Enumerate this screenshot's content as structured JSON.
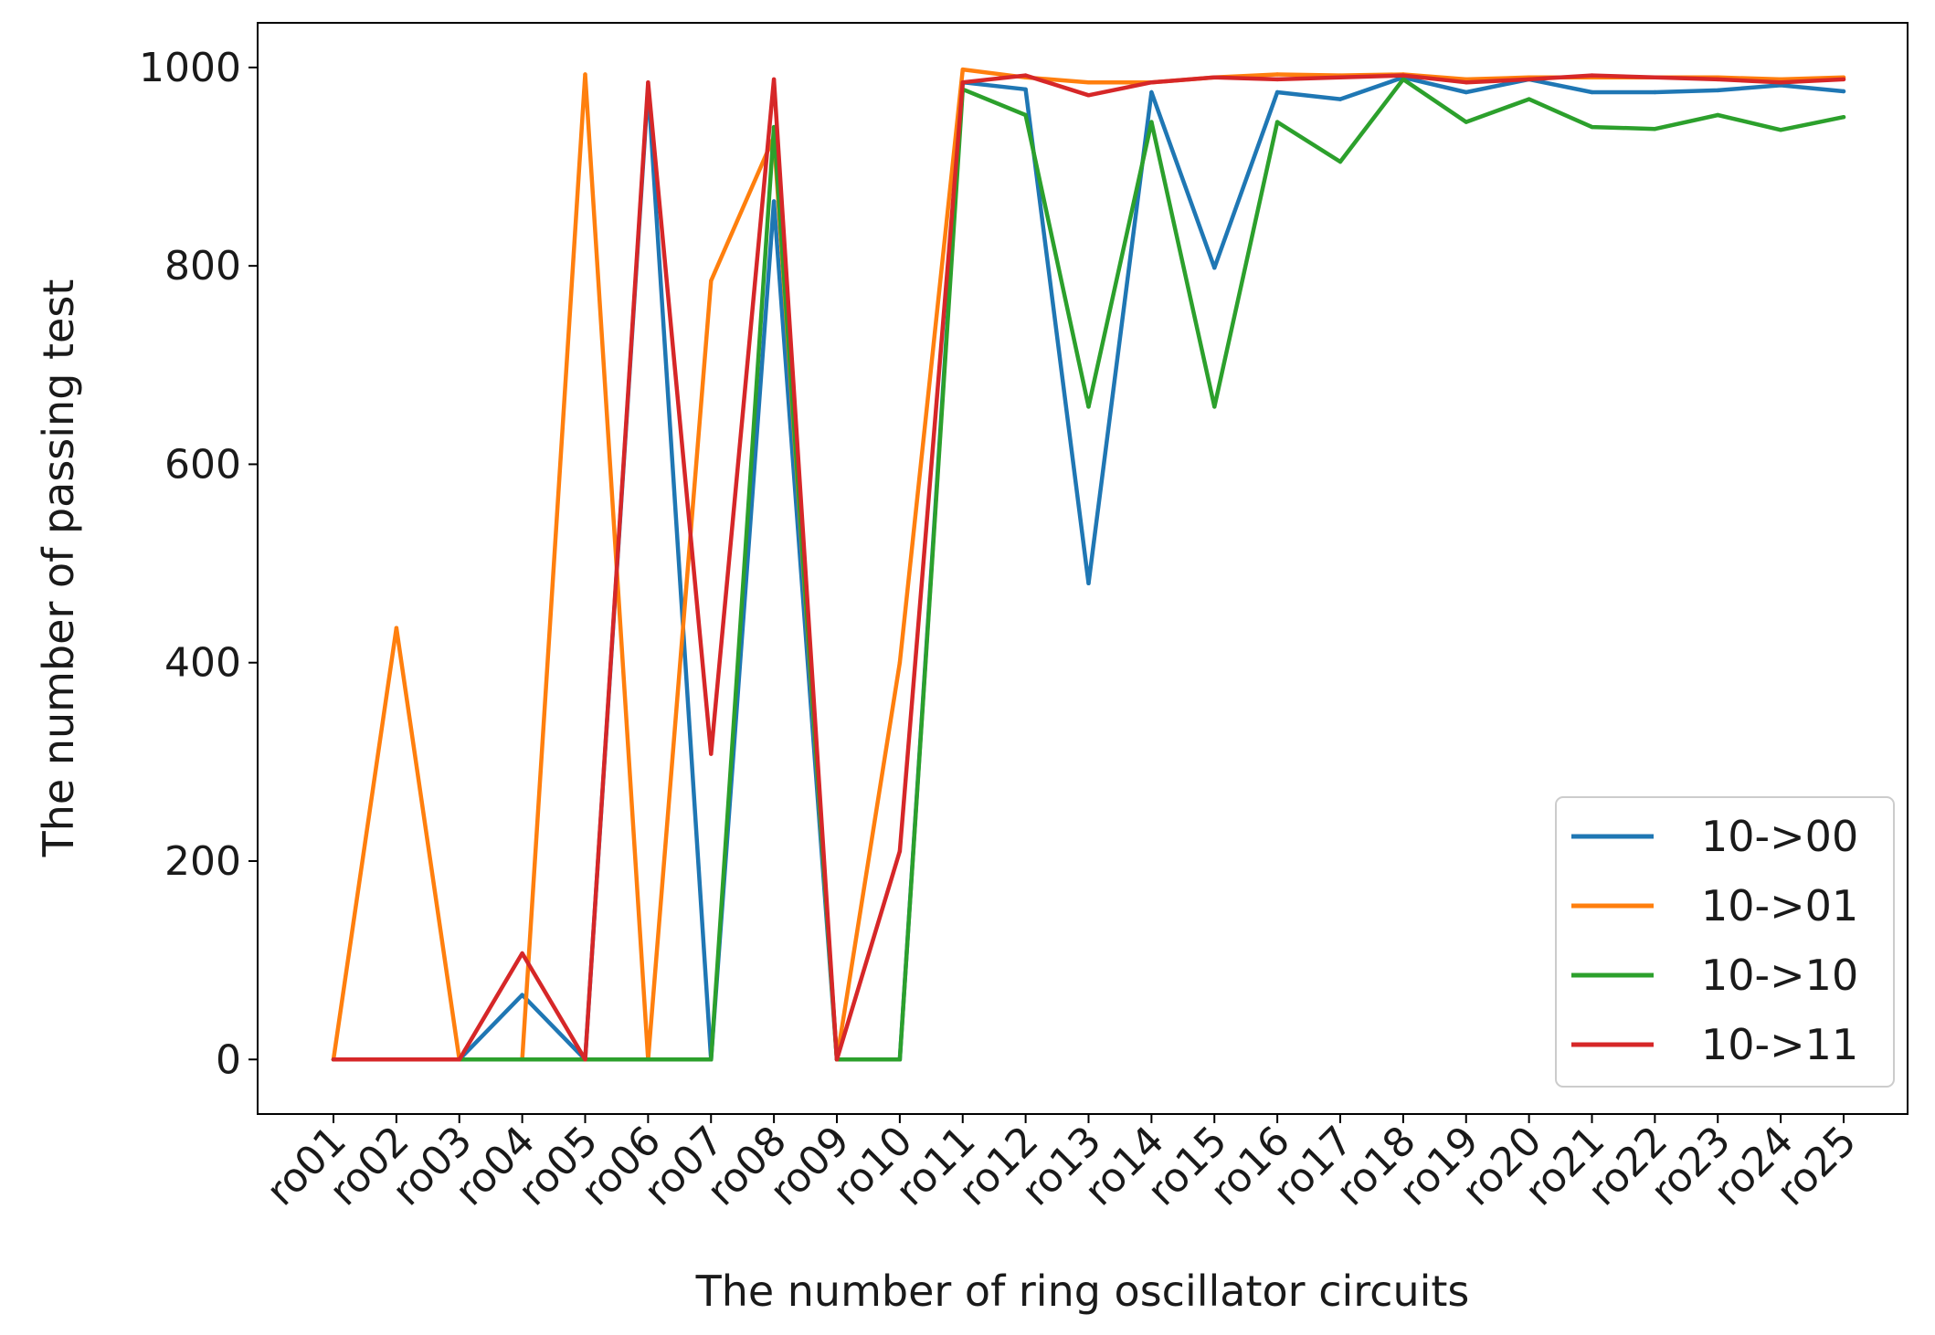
{
  "chart_data": {
    "type": "line",
    "title": "",
    "xlabel": "The number of ring oscillator circuits",
    "ylabel": "The number of passing test",
    "categories": [
      "ro01",
      "ro02",
      "ro03",
      "ro04",
      "ro05",
      "ro06",
      "ro07",
      "ro08",
      "ro09",
      "ro10",
      "ro11",
      "ro12",
      "ro13",
      "ro14",
      "ro15",
      "ro16",
      "ro17",
      "ro18",
      "ro19",
      "ro20",
      "ro21",
      "ro22",
      "ro23",
      "ro24",
      "ro25"
    ],
    "ylim": [
      -55,
      1045
    ],
    "yticks": [
      0,
      200,
      400,
      600,
      800,
      1000
    ],
    "grid": false,
    "legend_position": "lower-right",
    "series": [
      {
        "name": "10->00",
        "color": "#1f77b4",
        "values": [
          0,
          0,
          0,
          65,
          0,
          980,
          0,
          865,
          0,
          0,
          985,
          978,
          480,
          975,
          798,
          975,
          968,
          990,
          975,
          988,
          975,
          975,
          977,
          982,
          976
        ]
      },
      {
        "name": "10->01",
        "color": "#ff7f0e",
        "values": [
          0,
          435,
          0,
          0,
          993,
          0,
          785,
          930,
          0,
          400,
          998,
          990,
          985,
          985,
          990,
          993,
          992,
          993,
          988,
          990,
          990,
          990,
          990,
          988,
          990
        ]
      },
      {
        "name": "10->10",
        "color": "#2ca02c",
        "values": [
          0,
          0,
          0,
          0,
          0,
          0,
          0,
          940,
          0,
          0,
          978,
          952,
          658,
          945,
          658,
          945,
          905,
          988,
          945,
          968,
          940,
          938,
          952,
          937,
          950
        ]
      },
      {
        "name": "10->11",
        "color": "#d62728",
        "values": [
          0,
          0,
          0,
          107,
          0,
          985,
          308,
          988,
          0,
          210,
          985,
          992,
          972,
          985,
          990,
          988,
          990,
          992,
          985,
          988,
          992,
          990,
          988,
          985,
          988
        ]
      }
    ]
  }
}
